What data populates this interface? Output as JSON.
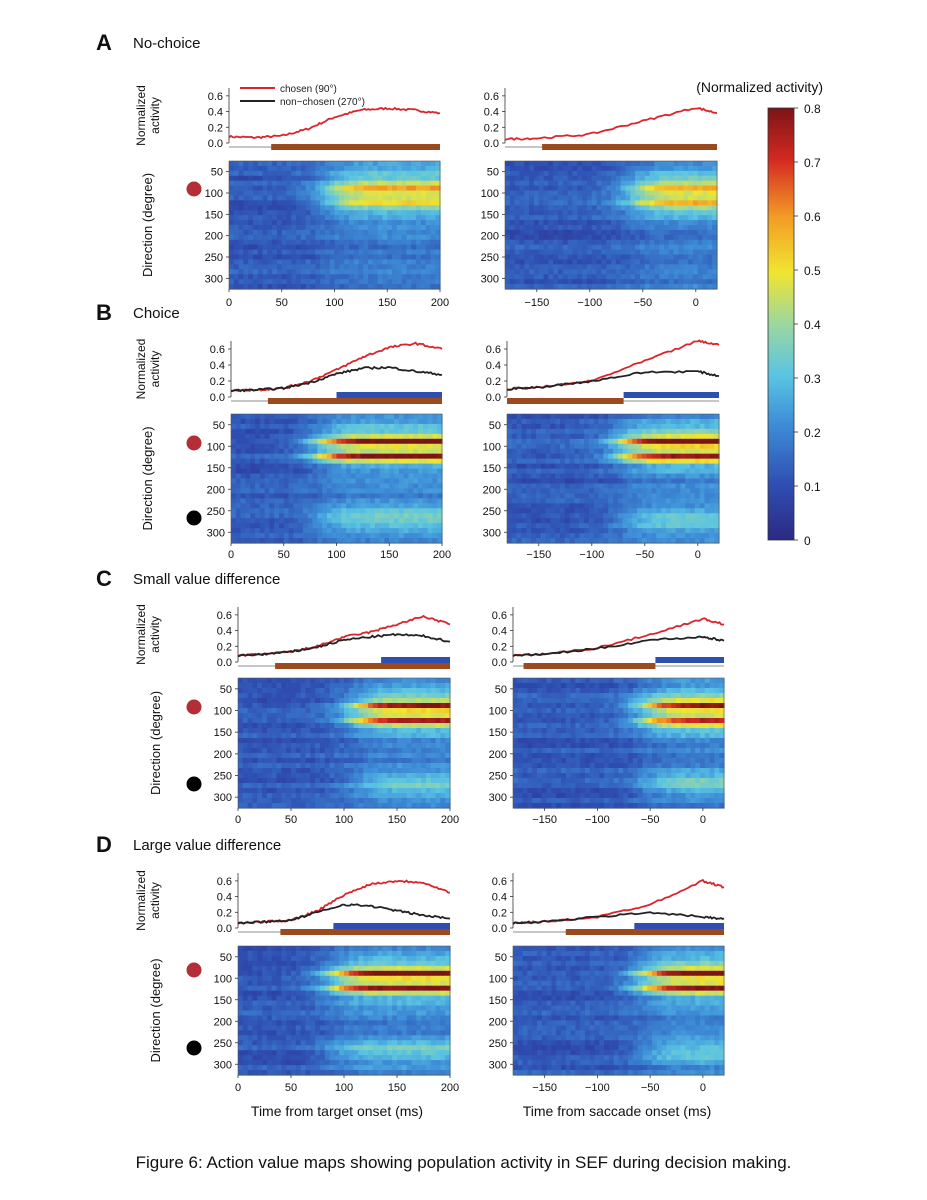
{
  "figure": {
    "caption": "Figure 6: Action value maps showing population activity in SEF during decision making.",
    "colorbar": {
      "title": "(Normalized activity)",
      "ticks": [
        "0.8",
        "0.7",
        "0.6",
        "0.5",
        "0.4",
        "0.3",
        "0.2",
        "0.1",
        "0"
      ],
      "max": 0.8,
      "min": 0
    },
    "legend": {
      "chosen_label": "chosen (90°)",
      "nonchosen_label": "non−chosen (270°)",
      "chosen_color": "#d9252b",
      "nonchosen_color": "#222222"
    },
    "labels": {
      "line_ylabel_1": "Normalized",
      "line_ylabel_2": "activity",
      "heat_ylabel": "Direction (degree)",
      "xlabel_left": "Time from target onset (ms)",
      "xlabel_right": "Time from saccade onset (ms)"
    },
    "bar_colors": {
      "brown": "#9a4a1e",
      "blue": "#2f4fb0"
    },
    "target_colors": {
      "chosen": "#b42f35",
      "nonchosen": "#000000"
    },
    "line_yticks": [
      "0.6",
      "0.4",
      "0.2",
      "0.0"
    ],
    "heat_yticks": [
      "50",
      "100",
      "150",
      "200",
      "250",
      "300"
    ],
    "left_xticks": [
      "0",
      "50",
      "100",
      "150",
      "200"
    ],
    "right_xticks": [
      "−150",
      "−100",
      "−50",
      "0"
    ]
  },
  "chart_data": [
    {
      "panel": "A",
      "title": "No-choice",
      "type": "line",
      "xlabel": "Time from target onset (ms)",
      "x_range": [
        0,
        200
      ],
      "ylim": [
        0,
        0.7
      ],
      "series": [
        {
          "name": "chosen (90°)",
          "x": [
            0,
            25,
            50,
            75,
            100,
            125,
            150,
            175,
            200
          ],
          "values": [
            0.08,
            0.07,
            0.09,
            0.18,
            0.33,
            0.42,
            0.44,
            0.42,
            0.38
          ]
        }
      ],
      "epoch_bars": {
        "brown": [
          40,
          200
        ],
        "blue": null
      },
      "heatmap": {
        "rows_deg": [
          50,
          100,
          150,
          200,
          250,
          300
        ],
        "peak_deg": 100,
        "peak_value": 0.55,
        "onset_ms": 95
      }
    },
    {
      "panel": "A",
      "type": "line",
      "xlabel": "Time from saccade onset (ms)",
      "x_range": [
        -180,
        20
      ],
      "ylim": [
        0,
        0.7
      ],
      "series": [
        {
          "name": "chosen (90°)",
          "x": [
            -180,
            -150,
            -100,
            -50,
            0,
            20
          ],
          "values": [
            0.05,
            0.06,
            0.11,
            0.28,
            0.45,
            0.38
          ]
        }
      ],
      "epoch_bars": {
        "brown": [
          -145,
          20
        ],
        "blue": null
      },
      "heatmap": {
        "rows_deg": [
          50,
          100,
          150,
          200,
          250,
          300
        ],
        "peak_deg": 100,
        "peak_value": 0.55,
        "onset_ms": -60
      }
    },
    {
      "panel": "B",
      "title": "Choice",
      "type": "line",
      "xlabel": "Time from target onset (ms)",
      "x_range": [
        0,
        200
      ],
      "ylim": [
        0,
        0.7
      ],
      "series": [
        {
          "name": "chosen (90°)",
          "x": [
            0,
            25,
            50,
            75,
            100,
            125,
            150,
            175,
            200
          ],
          "values": [
            0.08,
            0.09,
            0.11,
            0.2,
            0.34,
            0.5,
            0.62,
            0.67,
            0.6
          ]
        },
        {
          "name": "non−chosen (270°)",
          "x": [
            0,
            25,
            50,
            75,
            100,
            125,
            150,
            175,
            200
          ],
          "values": [
            0.08,
            0.09,
            0.11,
            0.18,
            0.29,
            0.36,
            0.37,
            0.32,
            0.28
          ]
        }
      ],
      "epoch_bars": {
        "brown": [
          35,
          200
        ],
        "blue": [
          100,
          200
        ]
      },
      "heatmap": {
        "rows_deg": [
          50,
          100,
          150,
          200,
          250,
          300
        ],
        "peak_deg": 100,
        "peak_value": 0.8,
        "secondary_deg": 270,
        "onset_ms": 85
      }
    },
    {
      "panel": "B",
      "type": "line",
      "xlabel": "Time from saccade onset (ms)",
      "x_range": [
        -180,
        20
      ],
      "ylim": [
        0,
        0.7
      ],
      "series": [
        {
          "name": "chosen (90°)",
          "x": [
            -180,
            -150,
            -100,
            -50,
            0,
            20
          ],
          "values": [
            0.1,
            0.12,
            0.2,
            0.45,
            0.7,
            0.65
          ]
        },
        {
          "name": "non−chosen (270°)",
          "x": [
            -180,
            -150,
            -100,
            -50,
            0,
            20
          ],
          "values": [
            0.1,
            0.12,
            0.2,
            0.31,
            0.32,
            0.26
          ]
        }
      ],
      "epoch_bars": {
        "brown": [
          -180,
          -70
        ],
        "blue": [
          -70,
          20
        ]
      },
      "heatmap": {
        "rows_deg": [
          50,
          100,
          150,
          200,
          250,
          300
        ],
        "peak_deg": 100,
        "peak_value": 0.8,
        "secondary_deg": 270,
        "onset_ms": -70
      }
    },
    {
      "panel": "C",
      "title": "Small value difference",
      "type": "line",
      "xlabel": "Time from target onset (ms)",
      "x_range": [
        0,
        200
      ],
      "ylim": [
        0,
        0.7
      ],
      "series": [
        {
          "name": "chosen (90°)",
          "x": [
            0,
            25,
            50,
            75,
            100,
            125,
            150,
            175,
            200
          ],
          "values": [
            0.08,
            0.1,
            0.13,
            0.2,
            0.32,
            0.38,
            0.48,
            0.58,
            0.48
          ]
        },
        {
          "name": "non−chosen (270°)",
          "x": [
            0,
            25,
            50,
            75,
            100,
            125,
            150,
            175,
            200
          ],
          "values": [
            0.08,
            0.1,
            0.13,
            0.19,
            0.28,
            0.32,
            0.35,
            0.33,
            0.26
          ]
        }
      ],
      "epoch_bars": {
        "brown": [
          35,
          200
        ],
        "blue": [
          135,
          200
        ]
      },
      "heatmap": {
        "rows_deg": [
          50,
          100,
          150,
          200,
          250,
          300
        ],
        "peak_deg": 100,
        "peak_value": 0.75,
        "secondary_deg": 270,
        "onset_ms": 110
      }
    },
    {
      "panel": "C",
      "type": "line",
      "xlabel": "Time from saccade onset (ms)",
      "x_range": [
        -180,
        20
      ],
      "ylim": [
        0,
        0.7
      ],
      "series": [
        {
          "name": "chosen (90°)",
          "x": [
            -180,
            -150,
            -100,
            -50,
            0,
            20
          ],
          "values": [
            0.08,
            0.1,
            0.18,
            0.35,
            0.55,
            0.48
          ]
        },
        {
          "name": "non−chosen (270°)",
          "x": [
            -180,
            -150,
            -100,
            -50,
            0,
            20
          ],
          "values": [
            0.08,
            0.1,
            0.17,
            0.28,
            0.32,
            0.27
          ]
        }
      ],
      "epoch_bars": {
        "brown": [
          -170,
          -45
        ],
        "blue": [
          -45,
          20
        ]
      },
      "heatmap": {
        "rows_deg": [
          50,
          100,
          150,
          200,
          250,
          300
        ],
        "peak_deg": 100,
        "peak_value": 0.75,
        "secondary_deg": 270,
        "onset_ms": -55
      }
    },
    {
      "panel": "D",
      "title": "Large value difference",
      "type": "line",
      "xlabel": "Time from target onset (ms)",
      "x_range": [
        0,
        200
      ],
      "ylim": [
        0,
        0.7
      ],
      "series": [
        {
          "name": "chosen (90°)",
          "x": [
            0,
            25,
            50,
            75,
            100,
            125,
            150,
            175,
            200
          ],
          "values": [
            0.06,
            0.08,
            0.1,
            0.22,
            0.42,
            0.56,
            0.6,
            0.58,
            0.45
          ]
        },
        {
          "name": "non−chosen (270°)",
          "x": [
            0,
            25,
            50,
            75,
            100,
            125,
            150,
            175,
            200
          ],
          "values": [
            0.06,
            0.08,
            0.1,
            0.2,
            0.3,
            0.28,
            0.22,
            0.16,
            0.12
          ]
        }
      ],
      "epoch_bars": {
        "brown": [
          40,
          200
        ],
        "blue": [
          90,
          200
        ]
      },
      "heatmap": {
        "rows_deg": [
          50,
          100,
          150,
          200,
          250,
          300
        ],
        "peak_deg": 100,
        "peak_value": 0.8,
        "secondary_deg": 270,
        "onset_ms": 90
      }
    },
    {
      "panel": "D",
      "type": "line",
      "xlabel": "Time from saccade onset (ms)",
      "x_range": [
        -180,
        20
      ],
      "ylim": [
        0,
        0.7
      ],
      "series": [
        {
          "name": "chosen (90°)",
          "x": [
            -180,
            -150,
            -100,
            -50,
            0,
            20
          ],
          "values": [
            0.06,
            0.08,
            0.14,
            0.3,
            0.6,
            0.52
          ]
        },
        {
          "name": "non−chosen (270°)",
          "x": [
            -180,
            -150,
            -100,
            -50,
            0,
            20
          ],
          "values": [
            0.06,
            0.08,
            0.14,
            0.2,
            0.14,
            0.12
          ]
        }
      ],
      "epoch_bars": {
        "brown": [
          -130,
          20
        ],
        "blue": [
          -65,
          20
        ]
      },
      "heatmap": {
        "rows_deg": [
          50,
          100,
          150,
          200,
          250,
          300
        ],
        "peak_deg": 100,
        "peak_value": 0.8,
        "secondary_deg": 270,
        "onset_ms": -55
      }
    }
  ]
}
